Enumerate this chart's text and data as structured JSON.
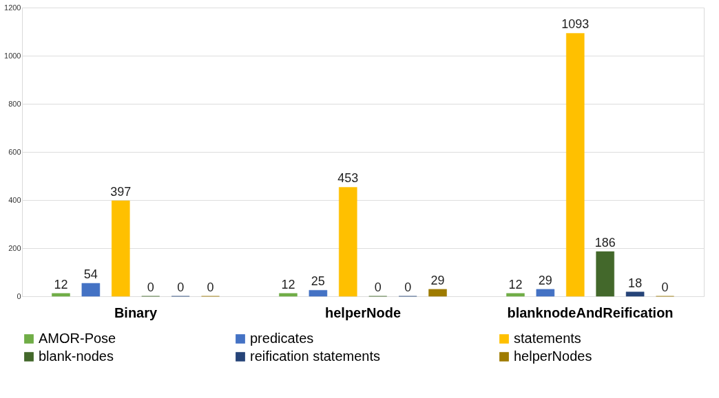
{
  "chart_data": {
    "type": "bar",
    "categories": [
      "Binary",
      "helperNode",
      "blanknodeAndReification"
    ],
    "series": [
      {
        "name": "AMOR-Pose",
        "color": "#70ad47",
        "values": [
          12,
          12,
          12
        ]
      },
      {
        "name": "predicates",
        "color": "#4472c4",
        "values": [
          54,
          25,
          29
        ]
      },
      {
        "name": "statements",
        "color": "#ffc000",
        "values": [
          397,
          453,
          1093
        ]
      },
      {
        "name": "blank-nodes",
        "color": "#43682b",
        "values": [
          0,
          0,
          186
        ]
      },
      {
        "name": "reification statements",
        "color": "#264478",
        "values": [
          0,
          0,
          18
        ]
      },
      {
        "name": "helperNodes",
        "color": "#9e7b00",
        "values": [
          0,
          29,
          0
        ]
      }
    ],
    "ylim": [
      0,
      1200
    ],
    "yticks": [
      0,
      200,
      400,
      600,
      800,
      1000,
      1200
    ],
    "grid": "y",
    "legend": "bottom",
    "data_labels": true
  }
}
